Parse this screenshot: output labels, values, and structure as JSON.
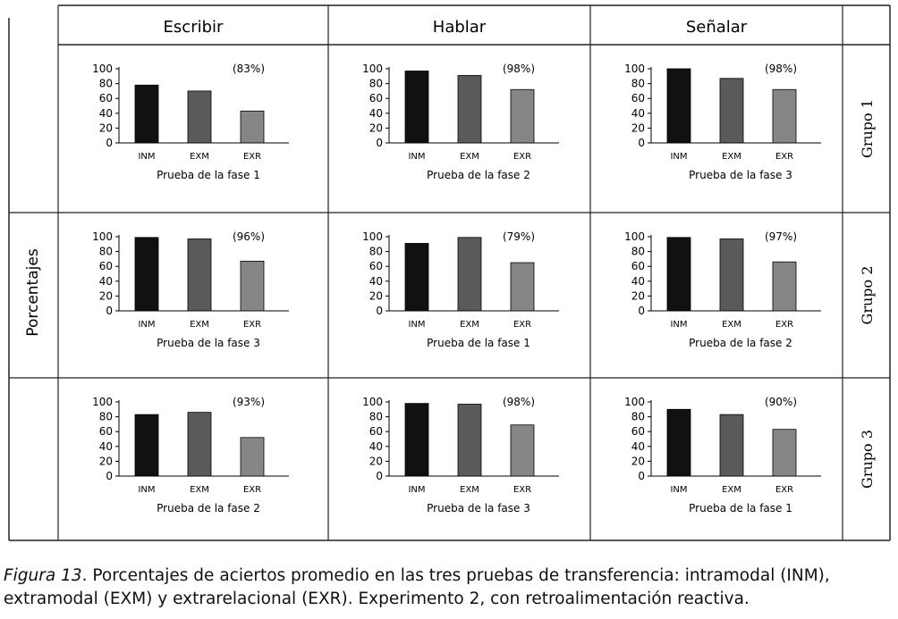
{
  "table": {
    "y_axis_label": "Porcentajes",
    "column_headers": [
      "Escribir",
      "Hablar",
      "Señalar"
    ],
    "row_headers": [
      "Grupo 1",
      "Grupo 2",
      "Grupo 3"
    ]
  },
  "colors": {
    "INM": "#111111",
    "EXM": "#5a5a5a",
    "EXR": "#868686",
    "grid": "#222222"
  },
  "chart_data": [
    {
      "type": "bar",
      "group": "Grupo 1",
      "task": "Escribir",
      "annotation": "(83%)",
      "xlabel": "Prueba de la fase 1",
      "categories": [
        "INM",
        "EXM",
        "EXR"
      ],
      "values": [
        78,
        70,
        43
      ],
      "yticks": [
        100,
        80,
        60,
        40,
        20,
        0
      ],
      "ylim": [
        0,
        100
      ]
    },
    {
      "type": "bar",
      "group": "Grupo 1",
      "task": "Hablar",
      "annotation": "(98%)",
      "xlabel": "Prueba de la fase 2",
      "categories": [
        "INM",
        "EXM",
        "EXR"
      ],
      "values": [
        97,
        91,
        72
      ],
      "yticks": [
        100,
        80,
        60,
        40,
        20,
        0
      ],
      "ylim": [
        0,
        100
      ]
    },
    {
      "type": "bar",
      "group": "Grupo 1",
      "task": "Señalar",
      "annotation": "(98%)",
      "xlabel": "Prueba de la fase 3",
      "categories": [
        "INM",
        "EXM",
        "EXR"
      ],
      "values": [
        100,
        87,
        72
      ],
      "yticks": [
        100,
        80,
        60,
        40,
        20,
        0
      ],
      "ylim": [
        0,
        100
      ]
    },
    {
      "type": "bar",
      "group": "Grupo 2",
      "task": "Escribir",
      "annotation": "(96%)",
      "xlabel": "Prueba de la fase 3",
      "categories": [
        "INM",
        "EXM",
        "EXR"
      ],
      "values": [
        99,
        97,
        67
      ],
      "yticks": [
        100,
        80,
        60,
        40,
        20,
        0
      ],
      "ylim": [
        0,
        100
      ]
    },
    {
      "type": "bar",
      "group": "Grupo 2",
      "task": "Hablar",
      "annotation": "(79%)",
      "xlabel": "Prueba de la fase 1",
      "categories": [
        "INM",
        "EXM",
        "EXR"
      ],
      "values": [
        91,
        99,
        65
      ],
      "yticks": [
        100,
        80,
        60,
        40,
        20,
        0
      ],
      "ylim": [
        0,
        100
      ]
    },
    {
      "type": "bar",
      "group": "Grupo 2",
      "task": "Señalar",
      "annotation": "(97%)",
      "xlabel": "Prueba de la fase 2",
      "categories": [
        "INM",
        "EXM",
        "EXR"
      ],
      "values": [
        99,
        97,
        66
      ],
      "yticks": [
        100,
        80,
        60,
        40,
        20,
        0
      ],
      "ylim": [
        0,
        100
      ]
    },
    {
      "type": "bar",
      "group": "Grupo 3",
      "task": "Escribir",
      "annotation": "(93%)",
      "xlabel": "Prueba de la fase 2",
      "categories": [
        "INM",
        "EXM",
        "EXR"
      ],
      "values": [
        83,
        86,
        52
      ],
      "yticks": [
        100,
        80,
        60,
        40,
        20,
        0
      ],
      "ylim": [
        0,
        100
      ]
    },
    {
      "type": "bar",
      "group": "Grupo 3",
      "task": "Hablar",
      "annotation": "(98%)",
      "xlabel": "Prueba de la fase 3",
      "categories": [
        "INM",
        "EXM",
        "EXR"
      ],
      "values": [
        98,
        97,
        69
      ],
      "yticks": [
        100,
        80,
        60,
        40,
        20,
        0
      ],
      "ylim": [
        0,
        100
      ]
    },
    {
      "type": "bar",
      "group": "Grupo 3",
      "task": "Señalar",
      "annotation": "(90%)",
      "xlabel": "Prueba de la fase 1",
      "categories": [
        "INM",
        "EXM",
        "EXR"
      ],
      "values": [
        90,
        83,
        63
      ],
      "yticks": [
        100,
        80,
        60,
        40,
        20,
        0
      ],
      "ylim": [
        0,
        100
      ]
    }
  ],
  "caption": {
    "figure_label": "Figura 13",
    "line1": ". Porcentajes de aciertos promedio en las tres pruebas de transferencia: intramodal (INM),",
    "line2": "extramodal (EXM) y extrarelacional (EXR). Experimento 2, con retroalimentación reactiva."
  }
}
